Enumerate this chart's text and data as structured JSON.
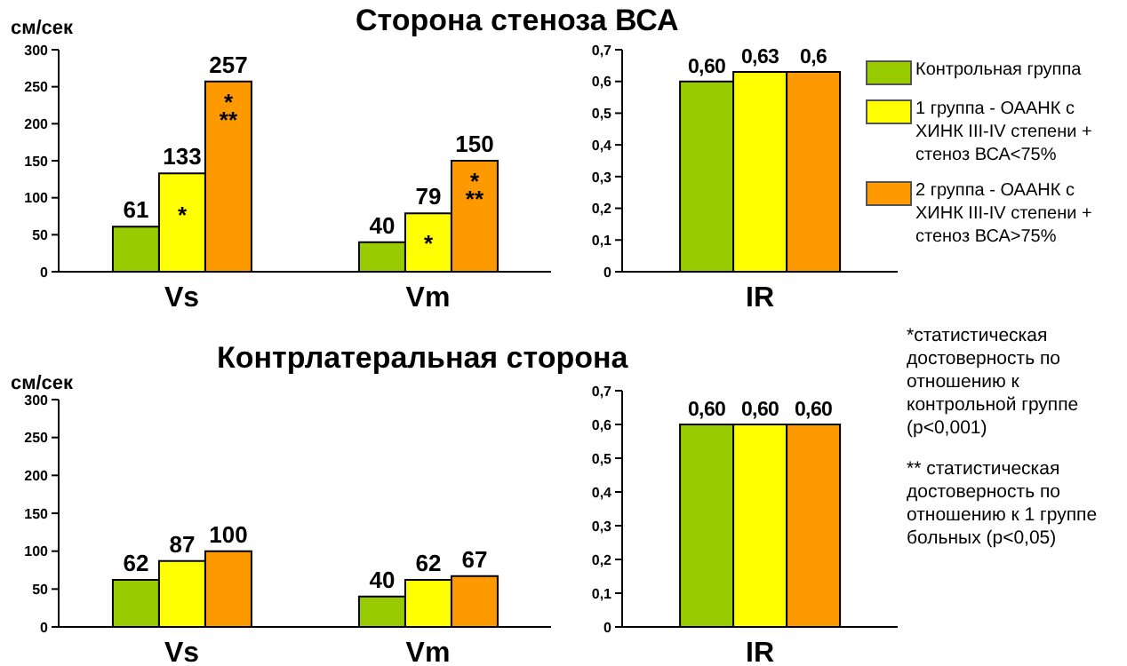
{
  "chart_data": [
    {
      "type": "bar",
      "title": "Сторона стеноза ВСА",
      "ylabel": "см/сек",
      "categories": [
        "Vs",
        "Vm"
      ],
      "ylim": [
        0,
        300
      ],
      "yticks": [
        0,
        50,
        100,
        150,
        200,
        250,
        300
      ],
      "grid": false,
      "legend": false,
      "series": [
        {
          "color": "#99cc00",
          "values": [
            61,
            40
          ],
          "value_labels": [
            "61",
            "40"
          ]
        },
        {
          "color": "#ffff00",
          "values": [
            133,
            79
          ],
          "value_labels": [
            "133",
            "79"
          ]
        },
        {
          "color": "#ff9900",
          "values": [
            257,
            150
          ],
          "value_labels": [
            "257",
            "150"
          ]
        }
      ],
      "annotations": [
        {
          "text": "*",
          "x": "Vs",
          "y": 133
        },
        "*\n**",
        {
          "text": "*",
          "x": "Vm",
          "y": 79
        },
        "*\n**"
      ]
    },
    {
      "type": "bar",
      "categories": [
        "IR"
      ],
      "ylim": [
        0,
        0.7
      ],
      "yticks": [
        0,
        {
          "value": 0.1,
          "label": "0,1"
        },
        {
          "value": 0.2,
          "label": "0,2"
        },
        {
          "value": 0.3,
          "label": "0,3"
        },
        {
          "value": 0.4,
          "label": "0,4"
        },
        {
          "value": 0.5,
          "label": "0,5"
        },
        {
          "value": 0.6,
          "label": "0,6"
        },
        {
          "value": 0.7,
          "label": "0,7"
        }
      ],
      "grid": false,
      "legend": "right",
      "series": [
        {
          "name": "Контрольная группа",
          "color": "#99cc00",
          "values": [
            0.6
          ],
          "value_labels": [
            "0,60"
          ]
        },
        {
          "name": "1 группа - ОААНК с ХИНК III-IV степени + стеноз ВСА<75%",
          "color": "#ffff00",
          "values": [
            0.63
          ],
          "value_labels": [
            "0,63"
          ]
        },
        {
          "name": "2 группа  - ОААНК с ХИНК III-IV степени + стеноз ВСА>75%",
          "color": "#ff9900",
          "values": [
            0.63
          ],
          "value_labels": [
            "0,6"
          ]
        }
      ]
    },
    {
      "type": "bar",
      "title": "Контрлатеральная сторона",
      "ylabel": "см/сек",
      "categories": [
        "Vs",
        "Vm"
      ],
      "ylim": [
        0,
        300
      ],
      "yticks": [
        0,
        50,
        100,
        150,
        200,
        250,
        300
      ],
      "grid": false,
      "legend": false,
      "series": [
        {
          "color": "#99cc00",
          "values": [
            62,
            40
          ],
          "value_labels": [
            "62",
            "40"
          ]
        },
        {
          "color": "#ffff00",
          "values": [
            87,
            62
          ],
          "value_labels": [
            "87",
            "62"
          ]
        },
        {
          "color": "#ff9900",
          "values": [
            100,
            67
          ],
          "value_labels": [
            "100",
            "67"
          ]
        }
      ]
    },
    {
      "type": "bar",
      "categories": [
        "IR"
      ],
      "ylim": [
        0,
        0.7
      ],
      "yticks": [
        0,
        {
          "value": 0.1,
          "label": "0,1"
        },
        {
          "value": 0.2,
          "label": "0,2"
        },
        {
          "value": 0.3,
          "label": "0,3"
        },
        {
          "value": 0.4,
          "label": "0,4"
        },
        {
          "value": 0.5,
          "label": "0,5"
        },
        {
          "value": 0.6,
          "label": "0,6"
        },
        {
          "value": 0.7,
          "label": "0,7"
        }
      ],
      "grid": false,
      "legend": false,
      "series": [
        {
          "color": "#99cc00",
          "values": [
            0.6
          ],
          "value_labels": [
            "0,60"
          ]
        },
        {
          "color": "#ffff00",
          "values": [
            0.6
          ],
          "value_labels": [
            "0,60"
          ]
        },
        {
          "color": "#ff9900",
          "values": [
            0.6
          ],
          "value_labels": [
            "0,60"
          ]
        }
      ],
      "annotations": [
        "*статистическая достоверность по отношению к контрольной группе (p<0,001)",
        "** статистическая достоверность по отношению к 1 группе больных (p<0,05)"
      ]
    }
  ]
}
